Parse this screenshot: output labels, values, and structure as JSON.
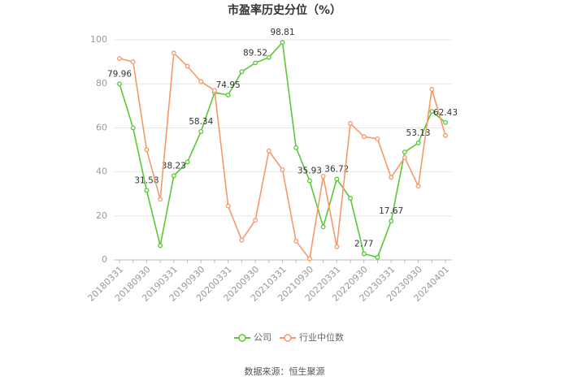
{
  "chart_data": {
    "type": "line",
    "title": "市盈率历史分位（%）",
    "source": "数据来源：恒生聚源",
    "categories": [
      "20180331",
      null,
      "20180930",
      null,
      "20190331",
      null,
      "20190930",
      null,
      "20200331",
      null,
      "20200930",
      null,
      "20210331",
      null,
      "20210930",
      null,
      "20220331",
      null,
      "20220930",
      null,
      "20230331",
      null,
      "20230930",
      null,
      "20240401"
    ],
    "series": [
      {
        "name": "公司",
        "color": "#5bc736",
        "values": [
          79.96,
          60,
          31.58,
          6.5,
          38.23,
          44.5,
          58.34,
          76,
          74.95,
          85.5,
          89.52,
          92,
          98.81,
          51,
          35.93,
          15,
          36.72,
          28,
          2.77,
          1.2,
          17.67,
          49,
          53.13,
          67.5,
          62.43
        ]
      },
      {
        "name": "行业中位数",
        "color": "#f5996b",
        "values": [
          91.5,
          90,
          50,
          27.5,
          94,
          88,
          81,
          77,
          24.5,
          9,
          18,
          49.5,
          41,
          8.5,
          0.5,
          38,
          6,
          62,
          56,
          55,
          37.5,
          46.5,
          33.5,
          77.5,
          56.5
        ]
      }
    ],
    "ylim": [
      0,
      100
    ],
    "yticks": [
      0,
      20,
      40,
      60,
      80,
      100
    ],
    "grid": true
  }
}
